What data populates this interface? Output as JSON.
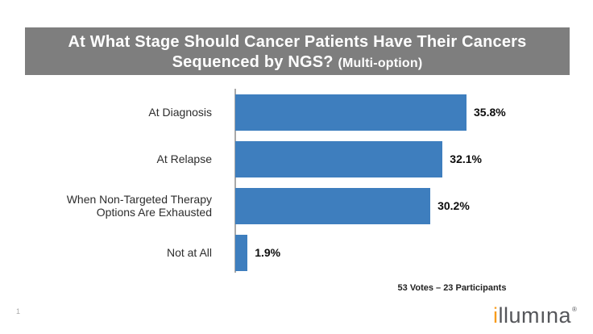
{
  "page": {
    "page_number": "1",
    "footer_caption": "53 Votes – 23 Participants"
  },
  "title": {
    "line1": "At What Stage Should Cancer Patients Have Their Cancers",
    "line2_main": "Sequenced by NGS?",
    "line2_suffix": "(Multi-option)"
  },
  "chart_data": {
    "type": "bar",
    "orientation": "horizontal",
    "title": "At What Stage Should Cancer Patients Have Their Cancers Sequenced by NGS? (Multi-option)",
    "categories": [
      "At Diagnosis",
      "At Relapse",
      "When Non-Targeted Therapy Options Are Exhausted",
      "Not at All"
    ],
    "category_label_lines": [
      [
        "At Diagnosis"
      ],
      [
        "At Relapse"
      ],
      [
        "When Non-Targeted Therapy",
        "Options Are Exhausted"
      ],
      [
        "Not at All"
      ]
    ],
    "values": [
      35.8,
      32.1,
      30.2,
      1.9
    ],
    "value_labels": [
      "35.8%",
      "32.1%",
      "30.2%",
      "1.9%"
    ],
    "xlabel": "",
    "ylabel": "",
    "xlim": [
      0,
      40
    ],
    "grid": false,
    "legend": false,
    "annotation": "53 Votes – 23 Participants",
    "bar_color": "#3E7EBE"
  },
  "branding": {
    "logo_text_orange": "i",
    "logo_text_gray": "llumına",
    "registered_mark": "®",
    "logo_orange_color": "#F89C1C",
    "logo_gray_color": "#55565A"
  },
  "colors": {
    "banner_bg": "#7E7E7E",
    "banner_text": "#FFFFFF",
    "bar": "#3E7EBE",
    "axis_line": "#A9A9A9",
    "value_label": "#0D0D0D",
    "category_label": "#2D2D2D"
  }
}
